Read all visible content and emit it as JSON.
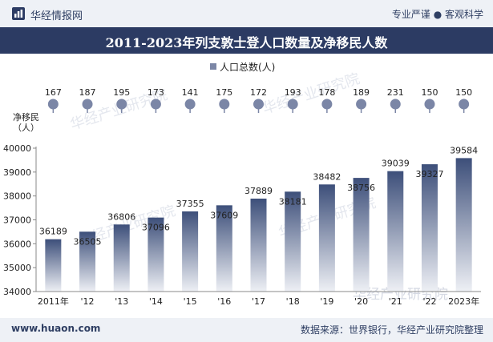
{
  "header": {
    "brand": "华经情报网",
    "slogan": "专业严谨 ● 客观科学",
    "logo_icon": "bar-chart-logo-icon"
  },
  "title": "2011-2023年列支敦士登人口数量及净移民人数",
  "footer": {
    "url": "www.huaon.com",
    "source": "数据来源：世界银行，华经产业研究院整理"
  },
  "watermark": "华经产业研究院",
  "colors": {
    "header_bg": "#2c3b63",
    "bar_top": "#3d4f7a",
    "bar_bottom": "#eef0f5",
    "dot": "#7b86a6",
    "text": "#222222"
  },
  "chart_data": {
    "type": "bar",
    "categories": [
      "2011年",
      "'12",
      "'13",
      "'14",
      "'15",
      "'16",
      "'17",
      "'18",
      "'19",
      "'20",
      "'21",
      "'22",
      "2023年"
    ],
    "series": [
      {
        "name": "人口总数(人)",
        "values": [
          36189,
          36505,
          36806,
          37096,
          37355,
          37609,
          37889,
          38181,
          38482,
          38756,
          39039,
          39327,
          39584
        ]
      }
    ],
    "net_migration": {
      "label": "净移民（人）",
      "values": [
        167,
        187,
        195,
        173,
        141,
        175,
        172,
        193,
        178,
        189,
        231,
        150,
        150
      ]
    },
    "ylim": [
      34000,
      40000
    ],
    "yticks": [
      34000,
      35000,
      36000,
      37000,
      38000,
      39000,
      40000
    ],
    "legend": "top-center"
  }
}
